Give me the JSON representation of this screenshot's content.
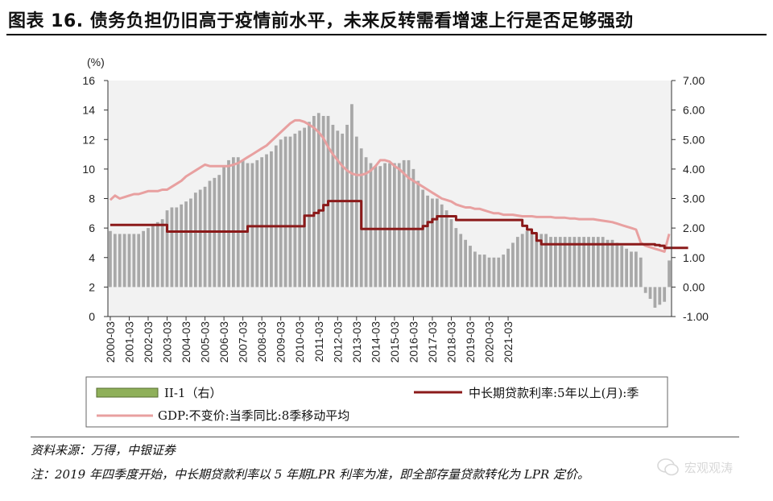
{
  "title": "图表 16. 债务负担仍旧高于疫情前水平，未来反转需看增速上行是否足够强劲",
  "source": "资料来源：万得，中银证券",
  "note": "注：2019 年四季度开始，中长期贷款利率以 5 年期LPR 利率为准，即全部存量贷款转化为 LPR 定价。",
  "watermark": "宏观观涛",
  "colors": {
    "bars": "#a8a8a8",
    "rate_line": "#8b1a1a",
    "gdp_line": "#e8a0a0",
    "legend_bar": "#8fb05a"
  },
  "chart_data": {
    "type": "bar+line",
    "left_axis": {
      "label": "(%)",
      "ylim": [
        0,
        16
      ],
      "ticks": [
        "0",
        "2",
        "4",
        "6",
        "8",
        "10",
        "12",
        "14",
        "16"
      ]
    },
    "right_axis": {
      "ylim": [
        -1.0,
        7.0
      ],
      "ticks": [
        "-1.00",
        "0.00",
        "1.00",
        "2.00",
        "3.00",
        "4.00",
        "5.00",
        "6.00",
        "7.00"
      ]
    },
    "x_tick_labels": [
      "2000-03",
      "2001-03",
      "2002-03",
      "2003-03",
      "2004-03",
      "2005-03",
      "2006-03",
      "2007-03",
      "2008-03",
      "2009-03",
      "2010-03",
      "2011-03",
      "2012-03",
      "2013-03",
      "2014-03",
      "2015-03",
      "2016-03",
      "2017-03",
      "2018-03",
      "2019-03",
      "2020-03",
      "2021-03"
    ],
    "quarters_start": "2000-03",
    "legend": [
      "II-1（右）",
      "中长期贷款利率:5年以上(月):季",
      "GDP:不变价:当季同比:8季移动平均"
    ],
    "series": [
      {
        "name": "II-1（右）",
        "type": "bar",
        "axis": "right",
        "values": [
          1.9,
          1.8,
          1.8,
          1.8,
          1.8,
          1.8,
          1.8,
          1.9,
          2.0,
          2.1,
          2.2,
          2.3,
          2.6,
          2.7,
          2.7,
          2.8,
          2.9,
          3.0,
          3.2,
          3.3,
          3.4,
          3.6,
          3.7,
          3.8,
          4.1,
          4.3,
          4.4,
          4.4,
          4.3,
          4.2,
          4.2,
          4.3,
          4.4,
          4.5,
          4.6,
          4.8,
          5.0,
          5.1,
          5.1,
          5.2,
          5.3,
          5.4,
          5.6,
          5.8,
          5.9,
          5.8,
          5.8,
          5.5,
          5.3,
          5.2,
          5.5,
          6.2,
          5.1,
          4.7,
          4.4,
          4.2,
          4.1,
          4.1,
          4.2,
          4.2,
          4.2,
          4.2,
          4.3,
          4.3,
          4.0,
          3.6,
          3.3,
          3.1,
          3.0,
          3.0,
          2.8,
          2.6,
          2.3,
          2.0,
          1.8,
          1.6,
          1.4,
          1.2,
          1.1,
          1.1,
          1.0,
          1.0,
          1.0,
          1.1,
          1.3,
          1.5,
          1.7,
          1.8,
          1.9,
          1.9,
          1.8,
          1.8,
          1.8,
          1.7,
          1.7,
          1.7,
          1.7,
          1.7,
          1.7,
          1.7,
          1.7,
          1.7,
          1.7,
          1.7,
          1.7,
          1.6,
          1.6,
          1.5,
          1.4,
          1.3,
          1.2,
          1.2,
          1.0,
          -0.2,
          -0.4,
          -0.7,
          -0.6,
          -0.5,
          0.9
        ]
      },
      {
        "name": "中长期贷款利率:5年以上(月):季",
        "type": "line",
        "axis": "left",
        "values": [
          6.21,
          6.21,
          6.21,
          6.21,
          6.21,
          6.21,
          6.21,
          6.21,
          6.21,
          6.21,
          6.21,
          6.21,
          5.76,
          5.76,
          5.76,
          5.76,
          5.76,
          5.76,
          5.76,
          5.76,
          5.76,
          5.76,
          5.76,
          5.76,
          5.76,
          5.76,
          5.76,
          5.76,
          5.76,
          6.12,
          6.12,
          6.12,
          6.12,
          6.12,
          6.12,
          6.12,
          6.12,
          6.12,
          6.12,
          6.12,
          6.12,
          6.84,
          6.84,
          7.02,
          7.2,
          7.56,
          7.83,
          7.83,
          7.83,
          7.83,
          7.83,
          7.83,
          7.83,
          5.94,
          5.94,
          5.94,
          5.94,
          5.94,
          5.94,
          5.94,
          5.94,
          5.94,
          5.94,
          5.94,
          5.94,
          5.94,
          6.14,
          6.4,
          6.6,
          6.8,
          6.8,
          6.8,
          6.8,
          6.55,
          6.55,
          6.55,
          6.55,
          6.55,
          6.55,
          6.55,
          6.55,
          6.55,
          6.55,
          6.55,
          6.55,
          6.55,
          6.55,
          6.15,
          5.9,
          5.65,
          5.15,
          4.9,
          4.9,
          4.9,
          4.9,
          4.9,
          4.9,
          4.9,
          4.9,
          4.9,
          4.9,
          4.9,
          4.9,
          4.9,
          4.9,
          4.9,
          4.9,
          4.9,
          4.9,
          4.9,
          4.9,
          4.9,
          4.9,
          4.9,
          4.9,
          4.85,
          4.8,
          4.65,
          4.65,
          4.65,
          4.65,
          4.65,
          4.65
        ]
      },
      {
        "name": "GDP:不变价:当季同比:8季移动平均",
        "type": "line",
        "axis": "left",
        "values": [
          7.9,
          8.2,
          8.0,
          8.1,
          8.2,
          8.3,
          8.3,
          8.4,
          8.5,
          8.5,
          8.5,
          8.6,
          8.6,
          8.8,
          9.0,
          9.2,
          9.5,
          9.7,
          9.9,
          10.1,
          10.3,
          10.2,
          10.2,
          10.2,
          10.2,
          10.2,
          10.3,
          10.4,
          10.6,
          10.8,
          11.0,
          11.2,
          11.4,
          11.6,
          11.9,
          12.2,
          12.5,
          12.8,
          13.1,
          13.3,
          13.3,
          13.2,
          13.0,
          12.8,
          12.5,
          12.1,
          11.5,
          11.0,
          10.6,
          10.2,
          9.9,
          9.7,
          9.6,
          9.6,
          9.7,
          9.9,
          10.2,
          10.6,
          10.6,
          10.5,
          10.2,
          10.0,
          9.7,
          9.4,
          9.2,
          9.0,
          8.8,
          8.6,
          8.4,
          8.2,
          8.0,
          7.9,
          7.8,
          7.6,
          7.5,
          7.4,
          7.4,
          7.3,
          7.3,
          7.2,
          7.1,
          7.0,
          7.0,
          6.9,
          6.9,
          6.9,
          6.85,
          6.8,
          6.8,
          6.8,
          6.75,
          6.75,
          6.75,
          6.75,
          6.7,
          6.7,
          6.7,
          6.65,
          6.65,
          6.6,
          6.6,
          6.6,
          6.6,
          6.55,
          6.5,
          6.45,
          6.4,
          6.3,
          6.2,
          6.1,
          6.0,
          5.9,
          5.0,
          4.8,
          4.7,
          4.6,
          4.5,
          4.4,
          5.6
        ]
      }
    ]
  }
}
